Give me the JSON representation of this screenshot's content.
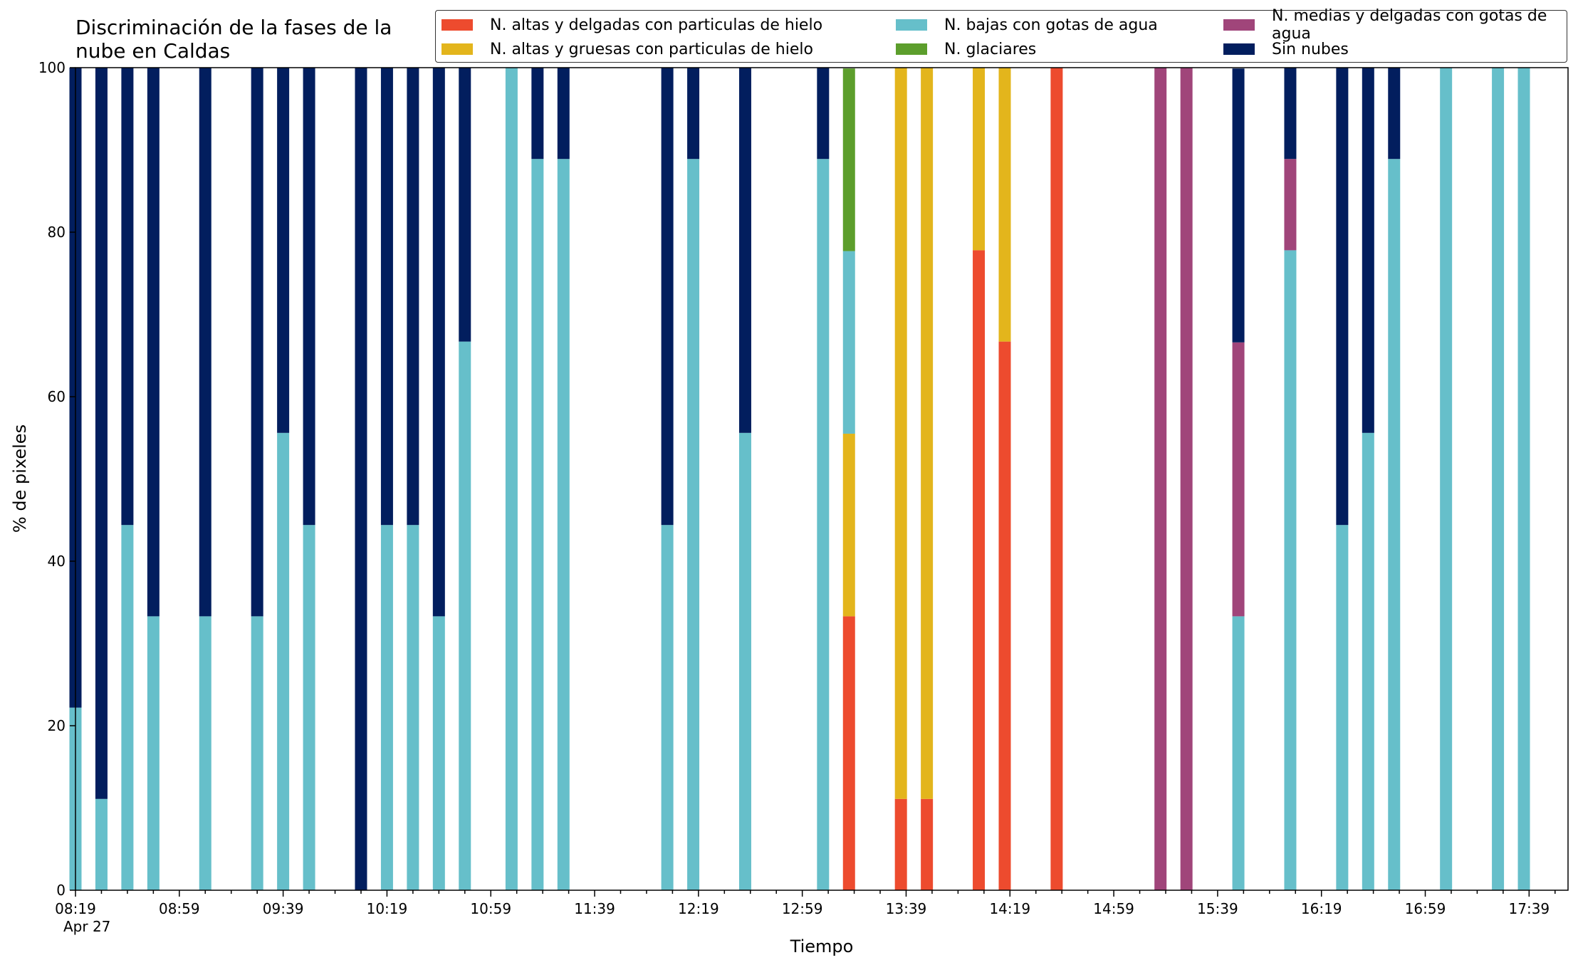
{
  "chart_data": {
    "type": "bar",
    "stacked": true,
    "title": "Discriminación de la fases de la nube en Caldas",
    "xlabel": "Tiempo",
    "ylabel": "% de pixeles",
    "ylim": [
      0,
      100
    ],
    "yticks": [
      0,
      20,
      40,
      60,
      80,
      100
    ],
    "x_tick_labels": [
      "08:19",
      "08:59",
      "09:39",
      "10:19",
      "10:59",
      "11:39",
      "12:19",
      "12:59",
      "13:39",
      "14:19",
      "14:59",
      "15:39",
      "16:19",
      "16:59",
      "17:39"
    ],
    "date_label": "Apr 27",
    "x_start": "08:19",
    "x_end": "17:54",
    "interval_minutes": 10,
    "legend_placement": "top",
    "grid": false,
    "times": [
      "08:19",
      "08:29",
      "08:39",
      "08:49",
      "09:09",
      "09:29",
      "09:39",
      "09:49",
      "10:09",
      "10:19",
      "10:29",
      "10:39",
      "10:49",
      "11:07",
      "11:17",
      "11:27",
      "12:07",
      "12:17",
      "12:37",
      "13:07",
      "13:17",
      "13:37",
      "13:47",
      "14:07",
      "14:17",
      "14:37",
      "15:17",
      "15:27",
      "15:47",
      "16:07",
      "16:27",
      "16:37",
      "16:47",
      "17:07",
      "17:27",
      "17:37"
    ],
    "series": [
      {
        "name": "N. altas y delgadas con particulas de hielo",
        "color": "#ed4b2e",
        "values": [
          0,
          0,
          0,
          0,
          0,
          0,
          0,
          0,
          0,
          0,
          0,
          0,
          0,
          0,
          0,
          0,
          0,
          0,
          0,
          0,
          33.3,
          11.1,
          11.1,
          77.8,
          66.7,
          100,
          0,
          0,
          0,
          0,
          0,
          0,
          0,
          0,
          0,
          0
        ]
      },
      {
        "name": "N. altas y gruesas con particulas de hielo",
        "color": "#e3b51c",
        "values": [
          0,
          0,
          0,
          0,
          0,
          0,
          0,
          0,
          0,
          0,
          0,
          0,
          0,
          0,
          0,
          0,
          0,
          0,
          0,
          0,
          22.2,
          88.9,
          88.9,
          22.2,
          33.3,
          0,
          0,
          0,
          0,
          0,
          0,
          0,
          0,
          0,
          0,
          0
        ]
      },
      {
        "name": "N. bajas con gotas de agua",
        "color": "#66bfca",
        "values": [
          22.2,
          11.1,
          44.4,
          33.3,
          33.3,
          33.3,
          55.6,
          44.4,
          0,
          44.4,
          44.4,
          33.3,
          66.7,
          100,
          88.9,
          88.9,
          44.4,
          88.9,
          55.6,
          88.9,
          22.2,
          0,
          0,
          0,
          0,
          0,
          0,
          0,
          33.3,
          77.8,
          44.4,
          55.6,
          88.9,
          100,
          100,
          100
        ]
      },
      {
        "name": "N. glaciares",
        "color": "#5c9e2c",
        "values": [
          0,
          0,
          0,
          0,
          0,
          0,
          0,
          0,
          0,
          0,
          0,
          0,
          0,
          0,
          0,
          0,
          0,
          0,
          0,
          0,
          22.2,
          0,
          0,
          0,
          0,
          0,
          0,
          0,
          0,
          0,
          0,
          0,
          0,
          0,
          0,
          0
        ]
      },
      {
        "name": "N. medias y delgadas con gotas de agua",
        "color": "#a0457a",
        "values": [
          0,
          0,
          0,
          0,
          0,
          0,
          0,
          0,
          0,
          0,
          0,
          0,
          0,
          0,
          0,
          0,
          0,
          0,
          0,
          0,
          0,
          0,
          0,
          0,
          0,
          0,
          100,
          100,
          33.3,
          11.1,
          0,
          0,
          0,
          0,
          0,
          0
        ]
      },
      {
        "name": "Sin nubes",
        "color": "#021e5e",
        "values": [
          77.8,
          88.9,
          55.6,
          66.7,
          66.7,
          66.7,
          44.4,
          55.6,
          100,
          55.6,
          55.6,
          66.7,
          33.3,
          0,
          11.1,
          11.1,
          55.6,
          11.1,
          44.4,
          11.1,
          0,
          0,
          0,
          0,
          0,
          0,
          0,
          0,
          33.3,
          11.1,
          55.6,
          44.4,
          11.1,
          0,
          0,
          0
        ]
      }
    ]
  }
}
